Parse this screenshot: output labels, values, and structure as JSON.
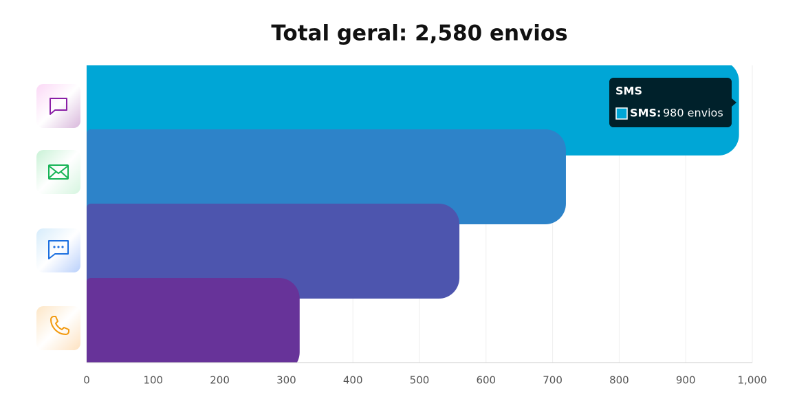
{
  "chart_data": {
    "type": "bar",
    "orientation": "horizontal",
    "title": "Total geral: 2,580 envios",
    "categories": [
      "SMS",
      null,
      null,
      null
    ],
    "values": [
      980,
      720,
      560,
      320
    ],
    "colors": [
      "#00a6d6",
      "#2d83c9",
      "#4d55ae",
      "#673399"
    ],
    "xlim": [
      0,
      1000
    ],
    "xticks": [
      0,
      100,
      200,
      300,
      400,
      500,
      600,
      700,
      800,
      900,
      {
        "value": 1000,
        "label": "1,000"
      }
    ],
    "grid": true,
    "tooltip": {
      "label": "SMS:",
      "value_label": "980 envios"
    }
  }
}
